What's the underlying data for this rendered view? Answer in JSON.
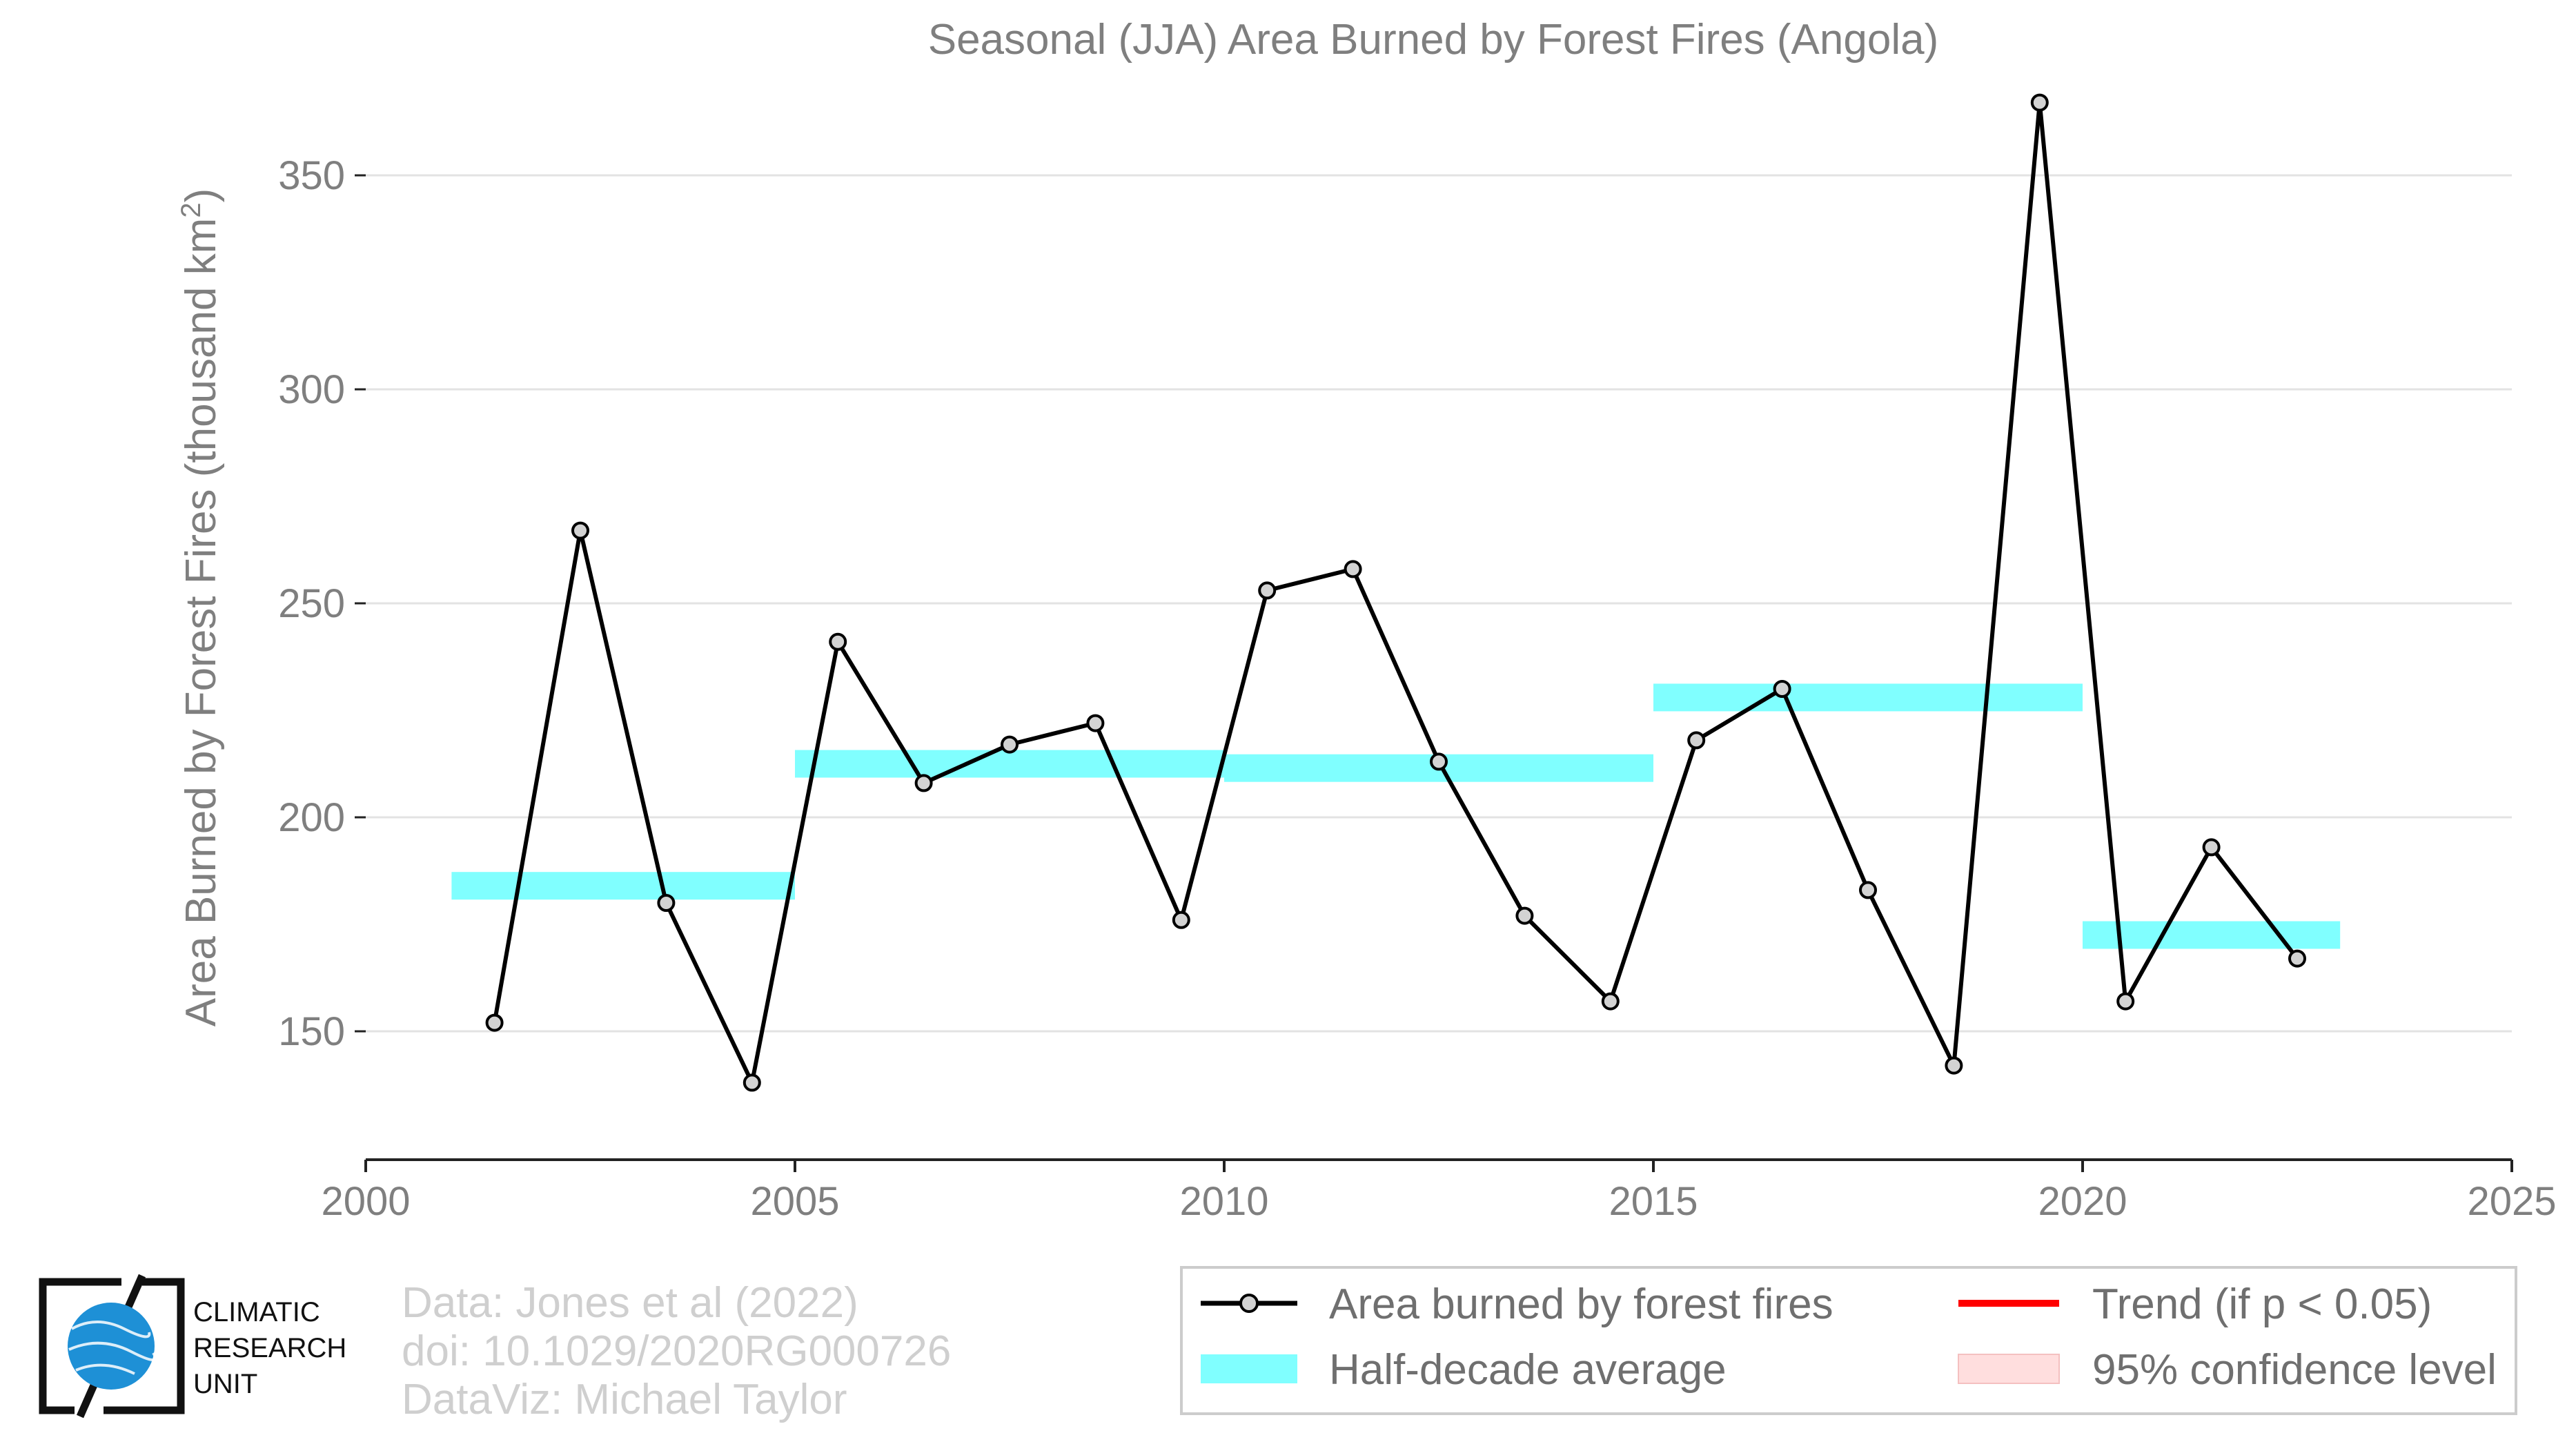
{
  "chart_data": {
    "type": "line",
    "title": "Seasonal (JJA) Area Burned by Forest Fires (Angola)",
    "ylabel": "Area Burned by Forest Fires (thousand km",
    "ylabel_superscript": "2",
    "ylabel_close": ")",
    "xlim": [
      2000,
      2025
    ],
    "ylim": [
      120,
      370
    ],
    "xticks": [
      2000,
      2005,
      2010,
      2015,
      2020,
      2025
    ],
    "yticks": [
      150,
      200,
      250,
      300,
      350
    ],
    "grid": true,
    "series": [
      {
        "name": "Area burned by forest fires",
        "color": "#000000",
        "marker_fill": "#d3d3d3",
        "x": [
          2001.5,
          2002.5,
          2003.5,
          2004.5,
          2005.5,
          2006.5,
          2007.5,
          2008.5,
          2009.5,
          2010.5,
          2011.5,
          2012.5,
          2013.5,
          2014.5,
          2015.5,
          2016.5,
          2017.5,
          2018.5,
          2019.5,
          2020.5,
          2021.5,
          2022.5
        ],
        "y": [
          152,
          267,
          180,
          138,
          241,
          208,
          217,
          222,
          176,
          253,
          258,
          213,
          177,
          157,
          218,
          230,
          183,
          142,
          367,
          157,
          193,
          167
        ]
      }
    ],
    "half_decade_average": {
      "name": "Half-decade average",
      "color": "#80ffff",
      "segments": [
        {
          "x0": 2001,
          "x1": 2005,
          "y": 184
        },
        {
          "x0": 2005,
          "x1": 2010,
          "y": 212.5
        },
        {
          "x0": 2010,
          "x1": 2015,
          "y": 211.5
        },
        {
          "x0": 2015,
          "x1": 2020,
          "y": 228
        },
        {
          "x0": 2020,
          "x1": 2023,
          "y": 172.5
        }
      ]
    },
    "legend": {
      "placement": "bottom-right",
      "entries": [
        {
          "label": "Area burned by forest fires",
          "kind": "line-marker",
          "color": "#000000"
        },
        {
          "label": "Trend (if p < 0.05)",
          "kind": "line",
          "color": "#ff0000"
        },
        {
          "label": "Half-decade average",
          "kind": "band",
          "color": "#80ffff"
        },
        {
          "label": "95% confidence level",
          "kind": "band",
          "color": "#ffdede"
        }
      ]
    }
  },
  "credits": {
    "line1": "Data: Jones et al (2022)",
    "line2": "doi: 10.1029/2020RG000726",
    "line3": "DataViz: Michael Taylor"
  },
  "logo": {
    "line1": "CLIMATIC",
    "line2": "RESEARCH",
    "line3": "UNIT",
    "globe_color": "#1e90d6"
  }
}
